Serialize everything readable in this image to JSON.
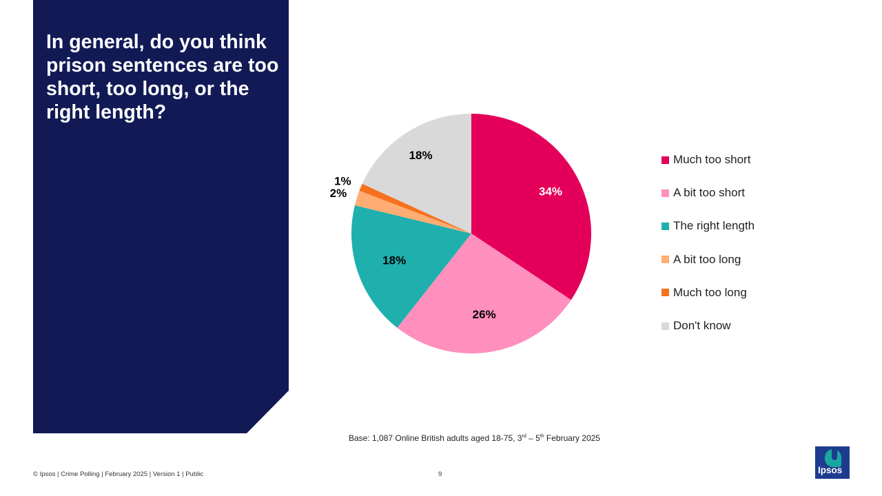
{
  "question": "In general, do you think prison sentences are too short, too long, or the right length?",
  "chart_data": {
    "type": "pie",
    "title": "",
    "categories": [
      "Much too short",
      "A bit too short",
      "The right length",
      "A bit too long",
      "Much too long",
      "Don't know"
    ],
    "values": [
      34,
      26,
      18,
      2,
      1,
      18
    ],
    "labels": [
      "34%",
      "26%",
      "18%",
      "2%",
      "1%",
      "18%"
    ],
    "colors": [
      "#e4005a",
      "#ff8fbd",
      "#1fb0ad",
      "#ffad73",
      "#f6711e",
      "#d9d9d9"
    ],
    "label_colors": [
      "#ffffff",
      "#000000",
      "#000000",
      "#000000",
      "#000000",
      "#000000"
    ],
    "start_angle": "12 o'clock",
    "direction": "clockwise",
    "legend_position": "right"
  },
  "base": {
    "prefix": "Base: 1,087 Online British adults aged 18-75, 3",
    "sup1": "rd",
    "mid": " – 5",
    "sup2": "th",
    "suffix": " February 2025"
  },
  "footer": {
    "left": "© Ipsos | Crime Polling | February 2025 | Version 1 | Public",
    "page": "9"
  },
  "logo": {
    "text": "Ipsos"
  }
}
